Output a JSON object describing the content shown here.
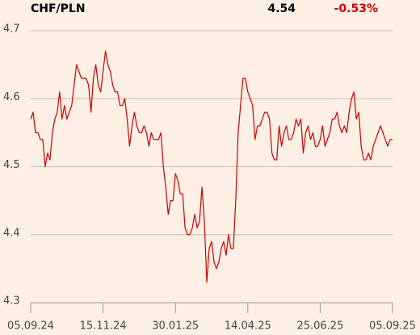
{
  "chart_data": {
    "type": "line",
    "title": "CHF/PLN",
    "last_price": 4.54,
    "change": {
      "value": -0.53,
      "label": "-0.53%"
    },
    "categories": [
      "05.09.24",
      null,
      null,
      null,
      null,
      null,
      null,
      null,
      null,
      null,
      null,
      null,
      null,
      null,
      null,
      null,
      null,
      null,
      null,
      null,
      null,
      null,
      null,
      null,
      null,
      null,
      null,
      null,
      null,
      null,
      "15.11.24",
      null,
      null,
      null,
      null,
      null,
      null,
      null,
      null,
      null,
      null,
      null,
      null,
      null,
      null,
      null,
      null,
      null,
      null,
      null,
      null,
      null,
      null,
      null,
      null,
      null,
      null,
      null,
      null,
      null,
      "30.01.25",
      null,
      null,
      null,
      null,
      null,
      null,
      null,
      null,
      null,
      null,
      null,
      null,
      null,
      null,
      null,
      null,
      null,
      null,
      null,
      null,
      null,
      null,
      null,
      null,
      null,
      null,
      null,
      null,
      null,
      "14.04.25",
      null,
      null,
      null,
      null,
      null,
      null,
      null,
      null,
      null,
      null,
      null,
      null,
      null,
      null,
      null,
      null,
      null,
      null,
      null,
      null,
      null,
      null,
      null,
      null,
      null,
      null,
      null,
      null,
      null,
      "25.06.25",
      null,
      null,
      null,
      null,
      null,
      null,
      null,
      null,
      null,
      null,
      null,
      null,
      null,
      null,
      null,
      null,
      null,
      null,
      null,
      null,
      null,
      null,
      null,
      null,
      null,
      null,
      null,
      null,
      null,
      "05.09.25"
    ],
    "values": [
      4.57,
      4.58,
      4.55,
      4.55,
      4.54,
      4.54,
      4.5,
      4.52,
      4.51,
      4.55,
      4.57,
      4.58,
      4.61,
      4.57,
      4.59,
      4.57,
      4.58,
      4.59,
      4.62,
      4.65,
      4.64,
      4.63,
      4.63,
      4.63,
      4.62,
      4.58,
      4.63,
      4.65,
      4.62,
      4.61,
      4.64,
      4.67,
      4.65,
      4.64,
      4.62,
      4.61,
      4.61,
      4.59,
      4.59,
      4.6,
      4.57,
      4.53,
      4.56,
      4.58,
      4.56,
      4.55,
      4.55,
      4.56,
      4.55,
      4.53,
      4.55,
      4.54,
      4.54,
      4.54,
      4.55,
      4.5,
      4.47,
      4.43,
      4.45,
      4.45,
      4.49,
      4.48,
      4.46,
      4.46,
      4.41,
      4.4,
      4.4,
      4.41,
      4.43,
      4.41,
      4.42,
      4.47,
      4.42,
      4.33,
      4.38,
      4.39,
      4.36,
      4.35,
      4.36,
      4.38,
      4.39,
      4.37,
      4.4,
      4.38,
      4.38,
      4.45,
      4.55,
      4.59,
      4.63,
      4.63,
      4.61,
      4.6,
      4.59,
      4.54,
      4.56,
      4.56,
      4.57,
      4.58,
      4.58,
      4.57,
      4.52,
      4.51,
      4.51,
      4.56,
      4.53,
      4.55,
      4.56,
      4.54,
      4.54,
      4.55,
      4.57,
      4.56,
      4.57,
      4.52,
      4.55,
      4.56,
      4.54,
      4.55,
      4.53,
      4.53,
      4.54,
      4.56,
      4.53,
      4.54,
      4.55,
      4.57,
      4.57,
      4.58,
      4.56,
      4.55,
      4.56,
      4.55,
      4.58,
      4.6,
      4.61,
      4.57,
      4.58,
      4.53,
      4.51,
      4.51,
      4.52,
      4.51,
      4.53,
      4.54,
      4.55,
      4.56,
      4.55,
      4.54,
      4.53,
      4.54,
      4.54
    ],
    "color": "#cc0000",
    "change_color": "#cc0000",
    "ylim": [
      4.3,
      4.7
    ],
    "yticks": [
      4.3,
      4.4,
      4.5,
      4.6,
      4.7
    ],
    "grid": true
  }
}
